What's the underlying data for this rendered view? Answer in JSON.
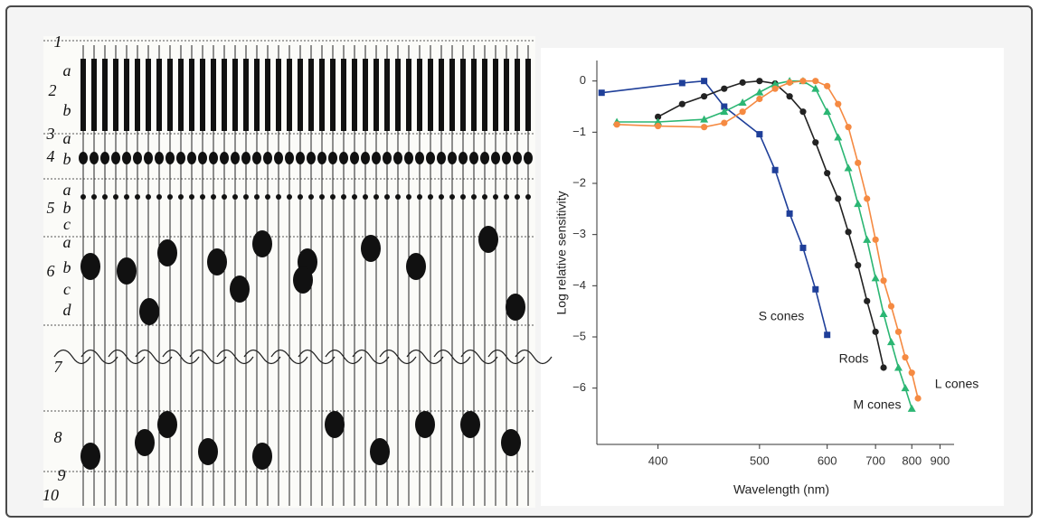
{
  "retina_labels": [
    "1",
    "a",
    "2",
    "b",
    "3",
    "a",
    "4",
    "b",
    "a",
    "5",
    "b",
    "c",
    "a",
    "6",
    "b",
    "c",
    "d",
    "7",
    "8",
    "9",
    "10"
  ],
  "chart_data": {
    "type": "line",
    "xlabel": "Wavelength (nm)",
    "ylabel": "Log relative sensitivity",
    "xscale": "reciprocal",
    "xlim": [
      357,
      960
    ],
    "xticks": [
      400,
      500,
      600,
      700,
      800,
      900
    ],
    "ylim": [
      -7.1,
      0.4
    ],
    "yticks": [
      0,
      {
        "value": -1,
        "label": "−1"
      },
      {
        "value": -2,
        "label": "−2"
      },
      {
        "value": -3,
        "label": "−3"
      },
      {
        "value": -4,
        "label": "−4"
      },
      {
        "value": -5,
        "label": "−5"
      },
      {
        "value": -6,
        "label": "−6"
      }
    ],
    "series": [
      {
        "name": "S cones",
        "color": "#1f3f99",
        "marker": "square",
        "x": [
          360,
          420,
          440,
          460,
          500,
          520,
          540,
          560,
          580,
          600
        ],
        "values": [
          -0.23,
          -0.04,
          0,
          -0.5,
          -1.04,
          -1.74,
          -2.59,
          -3.26,
          -4.07,
          -4.96
        ]
      },
      {
        "name": "Rods",
        "color": "#222222",
        "marker": "circle",
        "x": [
          400,
          420,
          440,
          460,
          480,
          500,
          520,
          540,
          560,
          580,
          600,
          620,
          640,
          660,
          680,
          700,
          720
        ],
        "values": [
          -0.7,
          -0.45,
          -0.3,
          -0.15,
          -0.03,
          0,
          -0.05,
          -0.3,
          -0.6,
          -1.2,
          -1.8,
          -2.3,
          -2.95,
          -3.6,
          -4.3,
          -4.9,
          -5.6
        ]
      },
      {
        "name": "M cones",
        "color": "#2bb673",
        "marker": "triangle",
        "x": [
          370,
          400,
          440,
          460,
          480,
          500,
          520,
          540,
          560,
          580,
          600,
          620,
          640,
          660,
          680,
          700,
          720,
          740,
          760,
          780,
          800
        ],
        "values": [
          -0.8,
          -0.8,
          -0.75,
          -0.6,
          -0.42,
          -0.22,
          -0.06,
          0,
          0,
          -0.15,
          -0.6,
          -1.1,
          -1.7,
          -2.4,
          -3.1,
          -3.85,
          -4.55,
          -5.1,
          -5.6,
          -6.0,
          -6.4
        ]
      },
      {
        "name": "L cones",
        "color": "#f58a42",
        "marker": "circle",
        "x": [
          370,
          400,
          440,
          460,
          480,
          500,
          520,
          540,
          560,
          580,
          600,
          620,
          640,
          660,
          680,
          700,
          720,
          740,
          760,
          780,
          800,
          820
        ],
        "values": [
          -0.85,
          -0.88,
          -0.9,
          -0.82,
          -0.6,
          -0.35,
          -0.15,
          -0.03,
          0,
          0,
          -0.1,
          -0.45,
          -0.9,
          -1.6,
          -2.3,
          -3.1,
          -3.9,
          -4.4,
          -4.9,
          -5.4,
          -5.7,
          -6.2
        ]
      }
    ]
  }
}
